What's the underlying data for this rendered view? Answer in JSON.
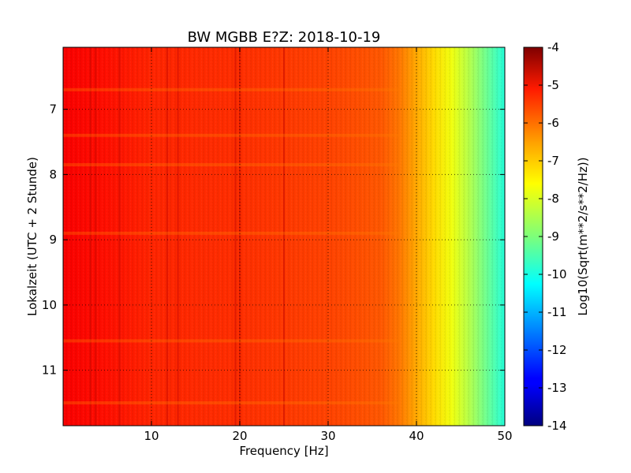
{
  "chart_data": {
    "type": "heatmap",
    "title": "BW MGBB E?Z: 2018-10-19",
    "xlabel": "Frequency [Hz]",
    "ylabel": "Lokalzeit (UTC + 2 Stunde)",
    "xlim": [
      0,
      50
    ],
    "ylim": [
      11.85,
      6.05
    ],
    "x_ticks": [
      10,
      20,
      30,
      40,
      50
    ],
    "y_ticks": [
      7,
      8,
      9,
      10,
      11
    ],
    "grid": true,
    "colorbar": {
      "label": "Log10(Sqrt(m**2/s**2/Hz))",
      "range": [
        -14,
        -4
      ],
      "ticks": [
        -4,
        -5,
        -6,
        -7,
        -8,
        -9,
        -10,
        -11,
        -12,
        -13,
        -14
      ],
      "colormap": "jet"
    },
    "spectrum_profile": {
      "frequency_hz": [
        0,
        5,
        10,
        20,
        30,
        36,
        38,
        40,
        42,
        44,
        46,
        48,
        50
      ],
      "log10_amplitude": [
        -5.2,
        -5.4,
        -5.6,
        -5.7,
        -5.9,
        -6.1,
        -6.4,
        -6.9,
        -7.4,
        -7.9,
        -8.5,
        -9.2,
        -9.9
      ]
    },
    "vertical_lines_hz": [
      3.1,
      3.7,
      6.4,
      11.8,
      13.0,
      19.5,
      20.0,
      25.0
    ],
    "horizontal_bands_hour": [
      6.7,
      7.4,
      7.85,
      8.9,
      10.55,
      11.5
    ]
  }
}
